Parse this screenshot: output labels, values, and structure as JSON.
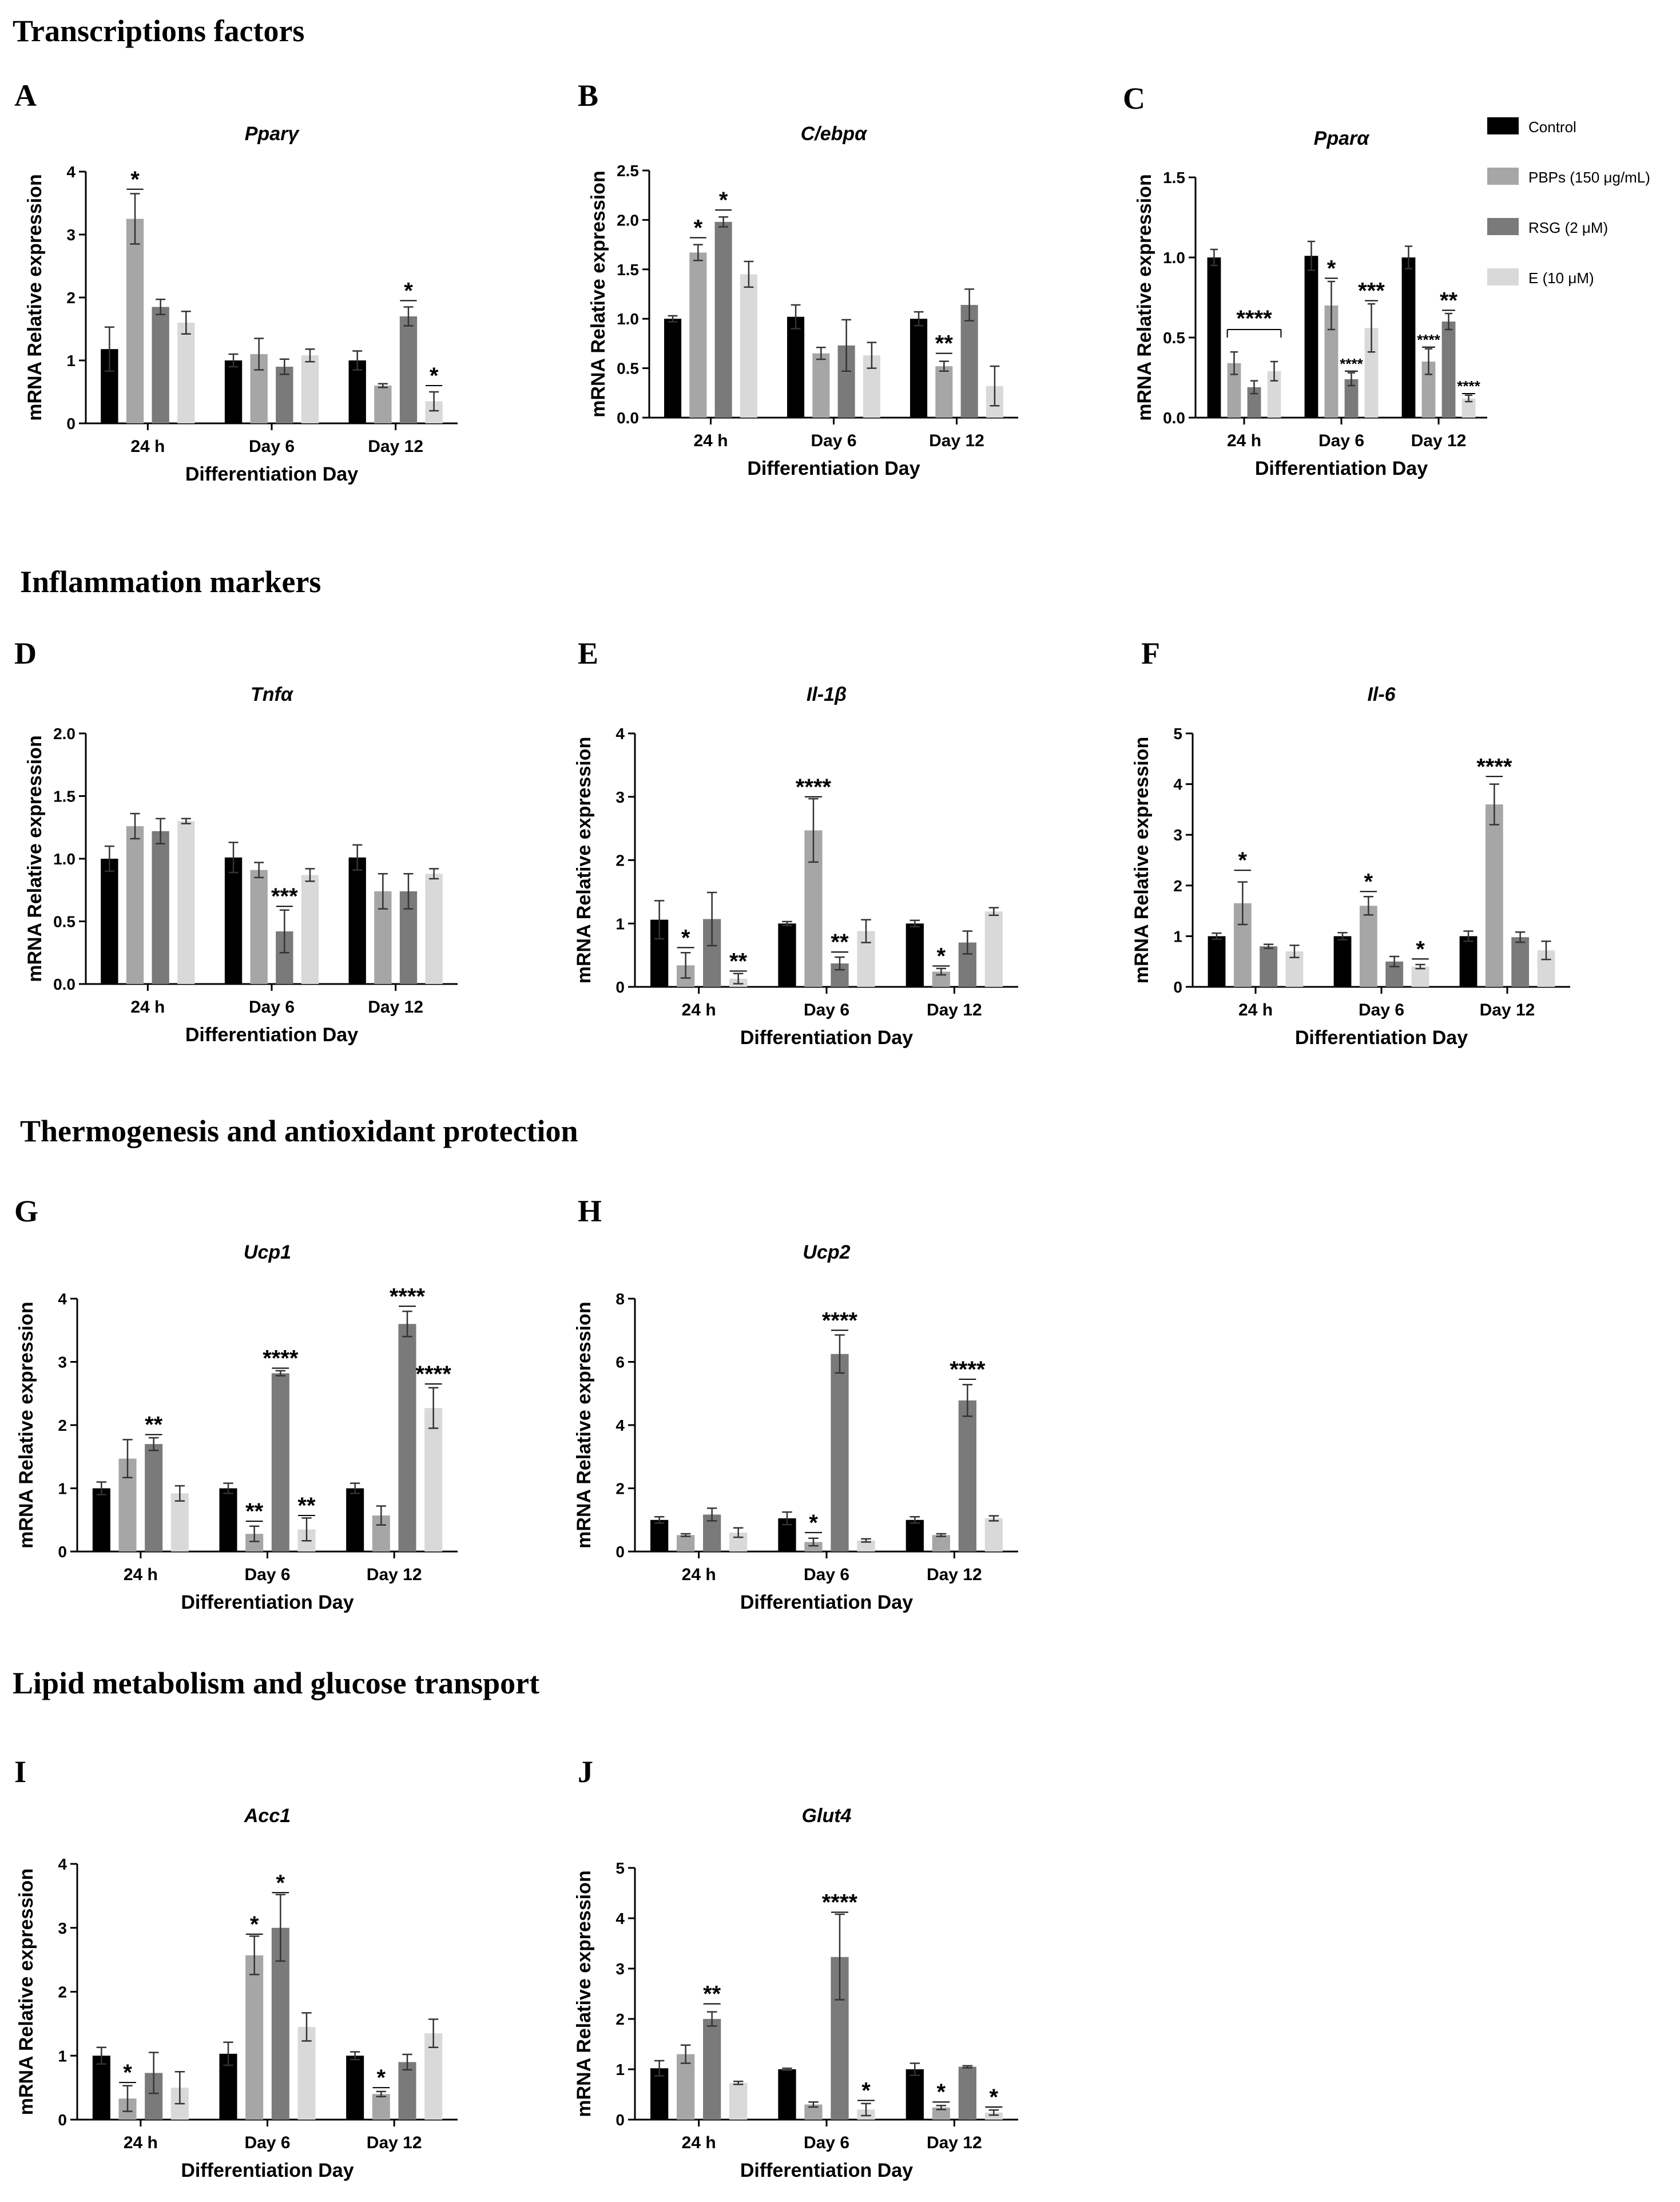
{
  "sections": [
    {
      "title": "Transcriptions factors"
    },
    {
      "title": "Inflammation markers"
    },
    {
      "title": "Thermogenesis and antioxidant protection"
    },
    {
      "title": "Lipid metabolism and glucose transport"
    }
  ],
  "legend": [
    {
      "label": "Control",
      "color": "#000000"
    },
    {
      "label": "PBPs (150 μg/mL)",
      "color": "#a6a6a6"
    },
    {
      "label": "RSG (2 μM)",
      "color": "#7a7a7a"
    },
    {
      "label": "E (10 μM)",
      "color": "#d9d9d9"
    }
  ],
  "chart_data": [
    {
      "id": "A",
      "type": "bar",
      "title": "Pparγ",
      "xlabel": "Differentiation Day",
      "ylabel": "mRNA Relative expression",
      "ylim": [
        0,
        4
      ],
      "yticks": [
        "0",
        "1",
        "2",
        "3",
        "4"
      ],
      "categories": [
        "24 h",
        "Day 6",
        "Day 12"
      ],
      "series": [
        {
          "name": "Control",
          "values": [
            1.18,
            1.0,
            1.0
          ],
          "errors": [
            0.35,
            0.1,
            0.15
          ]
        },
        {
          "name": "PBPs (150 μg/mL)",
          "values": [
            3.25,
            1.1,
            0.6
          ],
          "errors": [
            0.4,
            0.25,
            0.03
          ]
        },
        {
          "name": "RSG (2 μM)",
          "values": [
            1.85,
            0.9,
            1.7
          ],
          "errors": [
            0.12,
            0.12,
            0.15
          ]
        },
        {
          "name": "E (10 μM)",
          "values": [
            1.6,
            1.08,
            0.35
          ],
          "errors": [
            0.18,
            0.1,
            0.15
          ]
        }
      ],
      "significance": [
        {
          "cat": 0,
          "bar": 1,
          "label": "*",
          "value": 3.72
        },
        {
          "cat": 2,
          "bar": 2,
          "label": "*",
          "value": 1.95
        },
        {
          "cat": 2,
          "bar": 3,
          "label": "*",
          "value": 0.6
        }
      ]
    },
    {
      "id": "B",
      "type": "bar",
      "title": "C/ebpα",
      "xlabel": "Differentiation Day",
      "ylabel": "mRNA Relative expression",
      "ylim": [
        0,
        2.5
      ],
      "yticks": [
        "0.0",
        "0.5",
        "1.0",
        "1.5",
        "2.0",
        "2.5"
      ],
      "categories": [
        "24 h",
        "Day 6",
        "Day 12"
      ],
      "series": [
        {
          "name": "Control",
          "values": [
            1.0,
            1.02,
            1.0
          ],
          "errors": [
            0.03,
            0.12,
            0.07
          ]
        },
        {
          "name": "PBPs (150 μg/mL)",
          "values": [
            1.67,
            0.65,
            0.52
          ],
          "errors": [
            0.08,
            0.06,
            0.05
          ]
        },
        {
          "name": "RSG (2 μM)",
          "values": [
            1.98,
            0.73,
            1.14
          ],
          "errors": [
            0.05,
            0.26,
            0.16
          ]
        },
        {
          "name": "E (10 μM)",
          "values": [
            1.45,
            0.63,
            0.32
          ],
          "errors": [
            0.13,
            0.13,
            0.2
          ]
        }
      ],
      "significance": [
        {
          "cat": 0,
          "bar": 1,
          "label": "*",
          "value": 1.82
        },
        {
          "cat": 0,
          "bar": 2,
          "label": "*",
          "value": 2.1
        },
        {
          "cat": 2,
          "bar": 1,
          "label": "**",
          "value": 0.65
        }
      ]
    },
    {
      "id": "C",
      "type": "bar",
      "title": "Pparα",
      "xlabel": "Differentiation Day",
      "ylabel": "mRNA Relative expression",
      "ylim": [
        0,
        1.5
      ],
      "yticks": [
        "0.0",
        "0.5",
        "1.0",
        "1.5"
      ],
      "categories": [
        "24 h",
        "Day 6",
        "Day 12"
      ],
      "series": [
        {
          "name": "Control",
          "values": [
            1.0,
            1.01,
            1.0
          ],
          "errors": [
            0.05,
            0.09,
            0.07
          ]
        },
        {
          "name": "PBPs (150 μg/mL)",
          "values": [
            0.34,
            0.7,
            0.35
          ],
          "errors": [
            0.07,
            0.15,
            0.08
          ]
        },
        {
          "name": "RSG (2 μM)",
          "values": [
            0.19,
            0.24,
            0.6
          ],
          "errors": [
            0.04,
            0.04,
            0.05
          ]
        },
        {
          "name": "E (10 μM)",
          "values": [
            0.29,
            0.56,
            0.12
          ],
          "errors": [
            0.06,
            0.15,
            0.02
          ]
        }
      ],
      "significance": [
        {
          "cat": 0,
          "bar": 1,
          "label": "****",
          "value": 0.55
        },
        {
          "cat": 1,
          "bar": 1,
          "label": "*",
          "value": 0.87
        },
        {
          "cat": 1,
          "bar": 2,
          "label": "****",
          "value": 0.29
        },
        {
          "cat": 1,
          "bar": 3,
          "label": "***",
          "value": 0.73
        },
        {
          "cat": 2,
          "bar": 1,
          "label": "****",
          "value": 0.44
        },
        {
          "cat": 2,
          "bar": 2,
          "label": "**",
          "value": 0.67
        },
        {
          "cat": 2,
          "bar": 3,
          "label": "****",
          "value": 0.15
        }
      ]
    },
    {
      "id": "D",
      "type": "bar",
      "title": "Tnfα",
      "xlabel": "Differentiation Day",
      "ylabel": "mRNA Relative expression",
      "ylim": [
        0,
        2.0
      ],
      "yticks": [
        "0.0",
        "0.5",
        "1.0",
        "1.5",
        "2.0"
      ],
      "categories": [
        "24 h",
        "Day 6",
        "Day 12"
      ],
      "series": [
        {
          "name": "Control",
          "values": [
            1.0,
            1.01,
            1.01
          ],
          "errors": [
            0.1,
            0.12,
            0.1
          ]
        },
        {
          "name": "PBPs (150 μg/mL)",
          "values": [
            1.26,
            0.91,
            0.74
          ],
          "errors": [
            0.1,
            0.06,
            0.14
          ]
        },
        {
          "name": "RSG (2 μM)",
          "values": [
            1.22,
            0.42,
            0.74
          ],
          "errors": [
            0.1,
            0.17,
            0.14
          ]
        },
        {
          "name": "E (10 μM)",
          "values": [
            1.3,
            0.87,
            0.88
          ],
          "errors": [
            0.02,
            0.05,
            0.04
          ]
        }
      ],
      "significance": [
        {
          "cat": 1,
          "bar": 2,
          "label": "***",
          "value": 0.62
        }
      ]
    },
    {
      "id": "E",
      "type": "bar",
      "title": "Il-1β",
      "xlabel": "Differentiation Day",
      "ylabel": "mRNA Relative expression",
      "ylim": [
        0,
        4
      ],
      "yticks": [
        "0",
        "1",
        "2",
        "3",
        "4"
      ],
      "categories": [
        "24 h",
        "Day 6",
        "Day 12"
      ],
      "series": [
        {
          "name": "Control",
          "values": [
            1.06,
            1.0,
            1.0
          ],
          "errors": [
            0.3,
            0.03,
            0.05
          ]
        },
        {
          "name": "PBPs (150 μg/mL)",
          "values": [
            0.34,
            2.47,
            0.24
          ],
          "errors": [
            0.2,
            0.5,
            0.05
          ]
        },
        {
          "name": "RSG (2 μM)",
          "values": [
            1.07,
            0.37,
            0.7
          ],
          "errors": [
            0.42,
            0.1,
            0.18
          ]
        },
        {
          "name": "E (10 μM)",
          "values": [
            0.13,
            0.88,
            1.19
          ],
          "errors": [
            0.08,
            0.18,
            0.06
          ]
        }
      ],
      "significance": [
        {
          "cat": 0,
          "bar": 1,
          "label": "*",
          "value": 0.62
        },
        {
          "cat": 0,
          "bar": 3,
          "label": "**",
          "value": 0.25
        },
        {
          "cat": 1,
          "bar": 1,
          "label": "****",
          "value": 3.0
        },
        {
          "cat": 1,
          "bar": 2,
          "label": "**",
          "value": 0.55
        },
        {
          "cat": 2,
          "bar": 1,
          "label": "*",
          "value": 0.33
        }
      ]
    },
    {
      "id": "F",
      "type": "bar",
      "title": "Il-6",
      "xlabel": "Differentiation Day",
      "ylabel": "mRNA Relative expression",
      "ylim": [
        0,
        5
      ],
      "yticks": [
        "0",
        "1",
        "2",
        "3",
        "4",
        "5"
      ],
      "categories": [
        "24 h",
        "Day 6",
        "Day 12"
      ],
      "series": [
        {
          "name": "Control",
          "values": [
            1.0,
            1.0,
            1.0
          ],
          "errors": [
            0.06,
            0.07,
            0.1
          ]
        },
        {
          "name": "PBPs (150 μg/mL)",
          "values": [
            1.65,
            1.6,
            3.6
          ],
          "errors": [
            0.42,
            0.18,
            0.4
          ]
        },
        {
          "name": "RSG (2 μM)",
          "values": [
            0.8,
            0.5,
            0.98
          ],
          "errors": [
            0.04,
            0.1,
            0.1
          ]
        },
        {
          "name": "E (10 μM)",
          "values": [
            0.7,
            0.4,
            0.72
          ],
          "errors": [
            0.12,
            0.04,
            0.18
          ]
        }
      ],
      "significance": [
        {
          "cat": 0,
          "bar": 1,
          "label": "*",
          "value": 2.3
        },
        {
          "cat": 1,
          "bar": 1,
          "label": "*",
          "value": 1.88
        },
        {
          "cat": 1,
          "bar": 3,
          "label": "*",
          "value": 0.55
        },
        {
          "cat": 2,
          "bar": 1,
          "label": "****",
          "value": 4.15
        }
      ]
    },
    {
      "id": "G",
      "type": "bar",
      "title": "Ucp1",
      "xlabel": "Differentiation Day",
      "ylabel": "mRNA Relative expression",
      "ylim": [
        0,
        4
      ],
      "yticks": [
        "0",
        "1",
        "2",
        "3",
        "4"
      ],
      "categories": [
        "24 h",
        "Day 6",
        "Day 12"
      ],
      "series": [
        {
          "name": "Control",
          "values": [
            1.0,
            1.0,
            1.0
          ],
          "errors": [
            0.1,
            0.08,
            0.08
          ]
        },
        {
          "name": "PBPs (150 μg/mL)",
          "values": [
            1.47,
            0.28,
            0.57
          ],
          "errors": [
            0.3,
            0.12,
            0.15
          ]
        },
        {
          "name": "RSG (2 μM)",
          "values": [
            1.7,
            2.82,
            3.6
          ],
          "errors": [
            0.1,
            0.04,
            0.2
          ]
        },
        {
          "name": "E (10 μM)",
          "values": [
            0.92,
            0.35,
            2.27
          ],
          "errors": [
            0.12,
            0.18,
            0.32
          ]
        }
      ],
      "significance": [
        {
          "cat": 0,
          "bar": 2,
          "label": "**",
          "value": 1.85
        },
        {
          "cat": 1,
          "bar": 1,
          "label": "**",
          "value": 0.48
        },
        {
          "cat": 1,
          "bar": 2,
          "label": "****",
          "value": 2.9
        },
        {
          "cat": 1,
          "bar": 3,
          "label": "**",
          "value": 0.57
        },
        {
          "cat": 2,
          "bar": 2,
          "label": "****",
          "value": 3.88
        },
        {
          "cat": 2,
          "bar": 3,
          "label": "****",
          "value": 2.65
        }
      ]
    },
    {
      "id": "H",
      "type": "bar",
      "title": "Ucp2",
      "xlabel": "Differentiation Day",
      "ylabel": "mRNA Relative expression",
      "ylim": [
        0,
        8
      ],
      "yticks": [
        "0",
        "2",
        "4",
        "6",
        "8"
      ],
      "categories": [
        "24 h",
        "Day 6",
        "Day 12"
      ],
      "series": [
        {
          "name": "Control",
          "values": [
            1.0,
            1.05,
            1.0
          ],
          "errors": [
            0.1,
            0.2,
            0.1
          ]
        },
        {
          "name": "PBPs (150 μg/mL)",
          "values": [
            0.52,
            0.3,
            0.52
          ],
          "errors": [
            0.04,
            0.12,
            0.04
          ]
        },
        {
          "name": "RSG (2 μM)",
          "values": [
            1.17,
            6.25,
            4.78
          ],
          "errors": [
            0.2,
            0.6,
            0.5
          ]
        },
        {
          "name": "E (10 μM)",
          "values": [
            0.6,
            0.35,
            1.05
          ],
          "errors": [
            0.15,
            0.05,
            0.08
          ]
        }
      ],
      "significance": [
        {
          "cat": 1,
          "bar": 1,
          "label": "*",
          "value": 0.6
        },
        {
          "cat": 1,
          "bar": 2,
          "label": "****",
          "value": 7.0
        },
        {
          "cat": 2,
          "bar": 2,
          "label": "****",
          "value": 5.45
        }
      ]
    },
    {
      "id": "I",
      "type": "bar",
      "title": "Acc1",
      "xlabel": "Differentiation Day",
      "ylabel": "mRNA Relative expression",
      "ylim": [
        0,
        4
      ],
      "yticks": [
        "0",
        "1",
        "2",
        "3",
        "4"
      ],
      "categories": [
        "24 h",
        "Day 6",
        "Day 12"
      ],
      "series": [
        {
          "name": "Control",
          "values": [
            1.0,
            1.03,
            1.0
          ],
          "errors": [
            0.13,
            0.18,
            0.06
          ]
        },
        {
          "name": "PBPs (150 μg/mL)",
          "values": [
            0.33,
            2.57,
            0.4
          ],
          "errors": [
            0.2,
            0.3,
            0.04
          ]
        },
        {
          "name": "RSG (2 μM)",
          "values": [
            0.73,
            3.0,
            0.9
          ],
          "errors": [
            0.32,
            0.52,
            0.12
          ]
        },
        {
          "name": "E (10 μM)",
          "values": [
            0.5,
            1.45,
            1.35
          ],
          "errors": [
            0.25,
            0.22,
            0.22
          ]
        }
      ],
      "significance": [
        {
          "cat": 0,
          "bar": 1,
          "label": "*",
          "value": 0.58
        },
        {
          "cat": 1,
          "bar": 1,
          "label": "*",
          "value": 2.9
        },
        {
          "cat": 1,
          "bar": 2,
          "label": "*",
          "value": 3.55
        },
        {
          "cat": 2,
          "bar": 1,
          "label": "*",
          "value": 0.5
        }
      ]
    },
    {
      "id": "J",
      "type": "bar",
      "title": "Glut4",
      "xlabel": "Differentiation Day",
      "ylabel": "mRNA Relative expression",
      "ylim": [
        0,
        5
      ],
      "yticks": [
        "0",
        "1",
        "2",
        "3",
        "4",
        "5"
      ],
      "categories": [
        "24 h",
        "Day 6",
        "Day 12"
      ],
      "series": [
        {
          "name": "Control",
          "values": [
            1.02,
            1.0,
            1.0
          ],
          "errors": [
            0.15,
            0.02,
            0.12
          ]
        },
        {
          "name": "PBPs (150 μg/mL)",
          "values": [
            1.3,
            0.3,
            0.24
          ],
          "errors": [
            0.18,
            0.05,
            0.04
          ]
        },
        {
          "name": "RSG (2 μM)",
          "values": [
            2.0,
            3.23,
            1.05
          ],
          "errors": [
            0.14,
            0.85,
            0.02
          ]
        },
        {
          "name": "E (10 μM)",
          "values": [
            0.73,
            0.2,
            0.14
          ],
          "errors": [
            0.03,
            0.12,
            0.05
          ]
        }
      ],
      "significance": [
        {
          "cat": 0,
          "bar": 2,
          "label": "**",
          "value": 2.3
        },
        {
          "cat": 1,
          "bar": 2,
          "label": "****",
          "value": 4.12
        },
        {
          "cat": 1,
          "bar": 3,
          "label": "*",
          "value": 0.38
        },
        {
          "cat": 2,
          "bar": 1,
          "label": "*",
          "value": 0.35
        },
        {
          "cat": 2,
          "bar": 3,
          "label": "*",
          "value": 0.25
        }
      ]
    }
  ]
}
